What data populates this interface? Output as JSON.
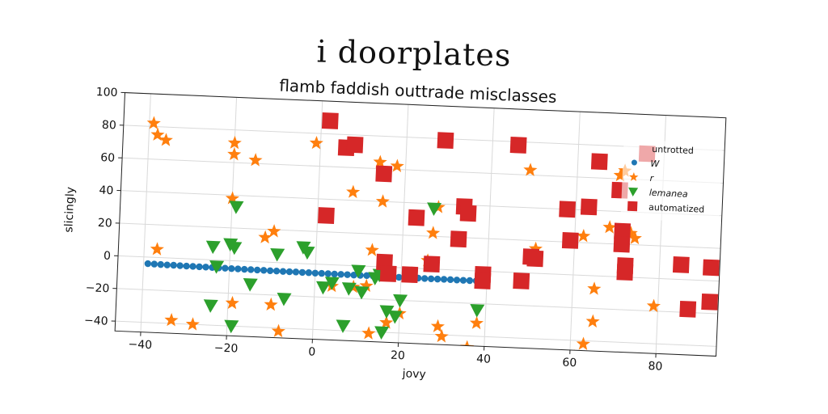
{
  "suptitle": "i doorplates",
  "chart_data": {
    "type": "scatter",
    "title": "flamb faddish outtrade misclasses",
    "xlabel": "jovy",
    "ylabel": "slicingly",
    "xlim": [
      -46,
      94
    ],
    "ylim": [
      -46,
      100
    ],
    "xticks": [
      -40,
      -20,
      0,
      20,
      40,
      60,
      80
    ],
    "yticks": [
      -40,
      -20,
      0,
      20,
      40,
      60,
      80,
      100
    ],
    "grid": true,
    "legend": {
      "title": "untrotted",
      "placement": "top-right"
    },
    "series": [
      {
        "name": "W",
        "marker": "circle",
        "color": "#1f77b4",
        "points": [
          [
            -39,
            -4
          ],
          [
            -37.5,
            -4.1
          ],
          [
            -36,
            -4.2
          ],
          [
            -34.5,
            -4.3
          ],
          [
            -33,
            -4.3
          ],
          [
            -31.5,
            -4.4
          ],
          [
            -30,
            -4.5
          ],
          [
            -28.5,
            -4.5
          ],
          [
            -27,
            -4.6
          ],
          [
            -25.5,
            -4.6
          ],
          [
            -24,
            -4.7
          ],
          [
            -22.5,
            -4.8
          ],
          [
            -21,
            -4.8
          ],
          [
            -19.5,
            -4.9
          ],
          [
            -18,
            -4.9
          ],
          [
            -16.5,
            -5
          ],
          [
            -15,
            -5
          ],
          [
            -13.5,
            -5.1
          ],
          [
            -12,
            -5.1
          ],
          [
            -10.5,
            -5.2
          ],
          [
            -9,
            -5.2
          ],
          [
            -7.5,
            -5.3
          ],
          [
            -6,
            -5.3
          ],
          [
            -4.5,
            -5.3
          ],
          [
            -3,
            -5.4
          ],
          [
            -1.5,
            -5.4
          ],
          [
            0,
            -5.5
          ],
          [
            1.5,
            -5.5
          ],
          [
            3,
            -5.5
          ],
          [
            4.5,
            -5.6
          ],
          [
            6,
            -5.6
          ],
          [
            7.5,
            -5.6
          ],
          [
            9,
            -5.7
          ],
          [
            10.5,
            -5.7
          ],
          [
            12,
            -5.7
          ],
          [
            13.5,
            -5.8
          ],
          [
            15,
            -5.8
          ],
          [
            16.5,
            -5.8
          ],
          [
            18,
            -5.8
          ],
          [
            19.5,
            -5.9
          ],
          [
            21,
            -5.9
          ],
          [
            22.5,
            -5.9
          ],
          [
            24,
            -5.9
          ],
          [
            25.5,
            -6
          ],
          [
            27,
            -6
          ],
          [
            28.5,
            -6
          ],
          [
            30,
            -6
          ],
          [
            31.5,
            -6
          ],
          [
            33,
            -6.1
          ],
          [
            34.5,
            -6.1
          ],
          [
            36,
            -6.1
          ],
          [
            37.5,
            -6.1
          ],
          [
            39,
            -6.1
          ]
        ]
      },
      {
        "name": "r",
        "marker": "star",
        "color": "#ff7f0e",
        "points": [
          [
            -39,
            82
          ],
          [
            -38,
            75
          ],
          [
            -36,
            72
          ],
          [
            -37,
            5
          ],
          [
            -33,
            -38
          ],
          [
            -28,
            -40
          ],
          [
            -20,
            72
          ],
          [
            -20,
            65
          ],
          [
            -15,
            62
          ],
          [
            -20,
            38
          ],
          [
            -19,
            -26
          ],
          [
            -12,
            15
          ],
          [
            -10,
            19
          ],
          [
            -10,
            -26
          ],
          [
            -8,
            -42
          ],
          [
            -1,
            74
          ],
          [
            8,
            45
          ],
          [
            4,
            -13
          ],
          [
            9,
            -13
          ],
          [
            12,
            -12
          ],
          [
            13,
            10
          ],
          [
            13,
            -41
          ],
          [
            14,
            64
          ],
          [
            15,
            40
          ],
          [
            17,
            -34
          ],
          [
            18,
            62
          ],
          [
            20,
            -28
          ],
          [
            26,
            5
          ],
          [
            27,
            22
          ],
          [
            28,
            38
          ],
          [
            29,
            -35
          ],
          [
            30,
            -41
          ],
          [
            36,
            -47
          ],
          [
            38,
            -32
          ],
          [
            49,
            63
          ],
          [
            51,
            15
          ],
          [
            61,
            -50
          ],
          [
            62,
            24
          ],
          [
            63,
            -42
          ],
          [
            65,
            -8
          ],
          [
            65,
            -28
          ],
          [
            68,
            30
          ],
          [
            70,
            62
          ],
          [
            71,
            65
          ],
          [
            73,
            27
          ],
          [
            74,
            24
          ],
          [
            79,
            -17
          ]
        ]
      },
      {
        "name": "lemanea",
        "marker": "triangle-down",
        "color": "#2ca02c",
        "points": [
          [
            -24,
            8
          ],
          [
            -23,
            -4
          ],
          [
            -24,
            -28
          ],
          [
            -20,
            10
          ],
          [
            -19,
            8
          ],
          [
            -19,
            33
          ],
          [
            -19,
            -40
          ],
          [
            -15,
            -14
          ],
          [
            -9,
            5
          ],
          [
            -7,
            -22
          ],
          [
            -3,
            10
          ],
          [
            -2,
            7
          ],
          [
            2,
            -14
          ],
          [
            4,
            -11
          ],
          [
            7,
            -37
          ],
          [
            8,
            -14
          ],
          [
            10,
            -3
          ],
          [
            11,
            -16
          ],
          [
            14,
            -7
          ],
          [
            15,
            -5
          ],
          [
            16,
            -40
          ],
          [
            17,
            -27
          ],
          [
            19,
            -30
          ],
          [
            20,
            -20
          ],
          [
            27,
            37
          ],
          [
            38,
            -24
          ]
        ]
      },
      {
        "name": "automatized",
        "marker": "square",
        "color": "#d62728",
        "points": [
          [
            2,
            88
          ],
          [
            2,
            30
          ],
          [
            6,
            72
          ],
          [
            8,
            74
          ],
          [
            15,
            57
          ],
          [
            16,
            3
          ],
          [
            17,
            -4
          ],
          [
            22,
            -4
          ],
          [
            23,
            31
          ],
          [
            27,
            3
          ],
          [
            29,
            79
          ],
          [
            33,
            19
          ],
          [
            34,
            39
          ],
          [
            35,
            35
          ],
          [
            39,
            -2
          ],
          [
            39,
            -6
          ],
          [
            46,
            78
          ],
          [
            48,
            -5
          ],
          [
            50,
            10
          ],
          [
            51,
            9
          ],
          [
            58,
            40
          ],
          [
            59,
            21
          ],
          [
            63,
            42
          ],
          [
            65,
            70
          ],
          [
            70,
            53
          ],
          [
            71,
            28
          ],
          [
            71,
            20
          ],
          [
            72,
            7
          ],
          [
            72,
            3
          ],
          [
            76,
            76
          ],
          [
            85,
            9
          ],
          [
            87,
            -18
          ],
          [
            92,
            8
          ],
          [
            92,
            -13
          ]
        ]
      }
    ]
  }
}
